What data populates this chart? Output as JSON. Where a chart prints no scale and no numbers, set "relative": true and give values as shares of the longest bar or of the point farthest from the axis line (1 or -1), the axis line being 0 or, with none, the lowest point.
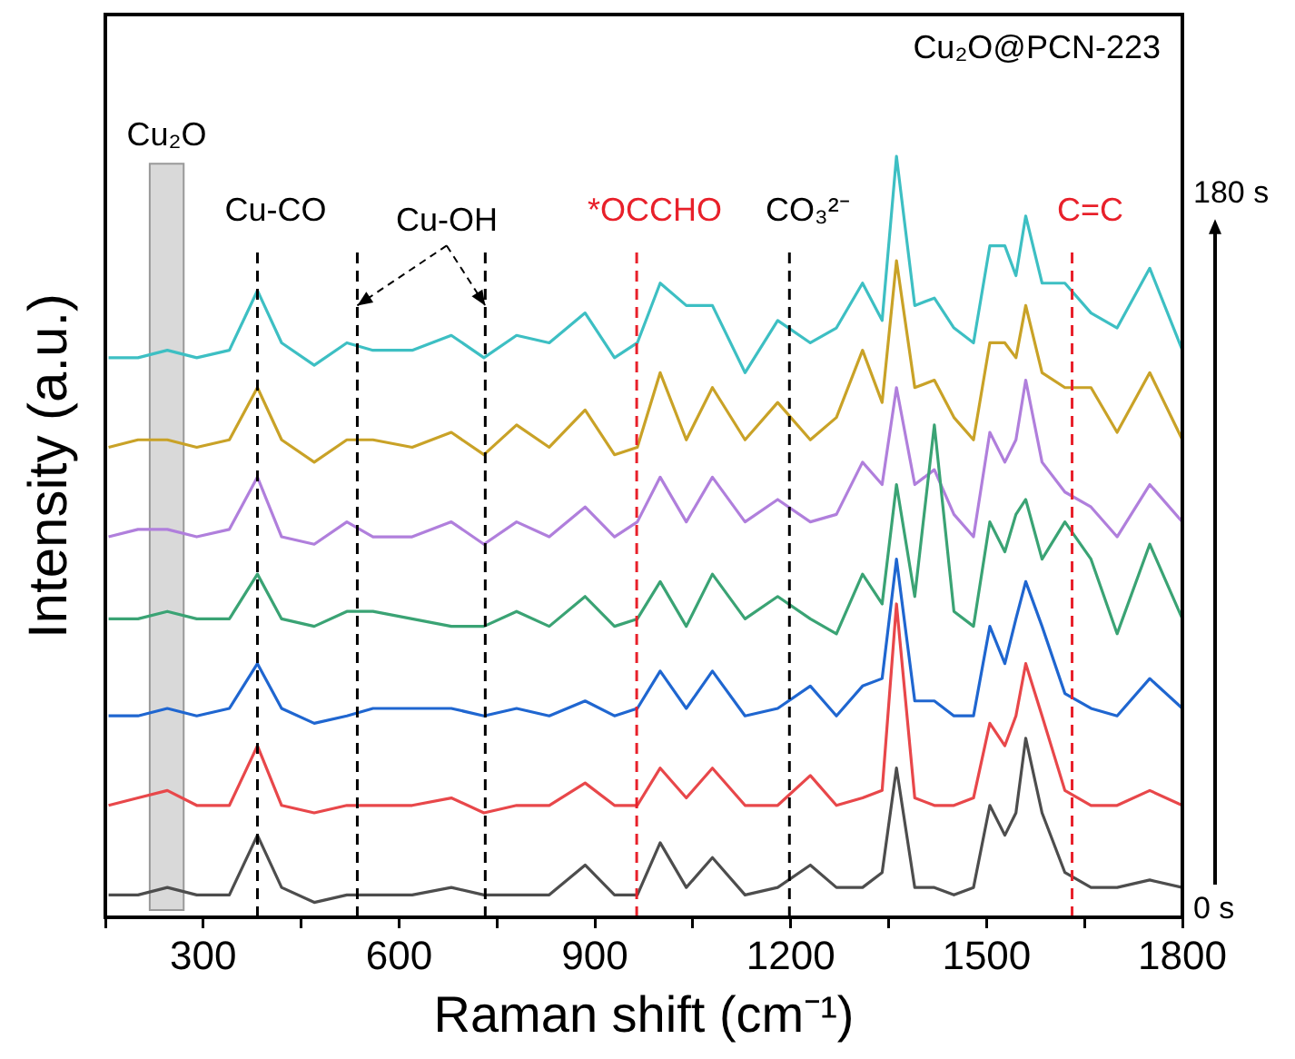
{
  "chart_data": {
    "type": "line",
    "title": "Cu₂O@PCN-223",
    "xlabel": "Raman shift (cm⁻¹)",
    "ylabel": "Intensity (a.u.)",
    "relative": true,
    "marker": "none",
    "line_style": "solid",
    "legend": false,
    "grid": false,
    "tick_labels": "x",
    "xlim": [
      150,
      1800
    ],
    "xticks": [
      {
        "value": 150,
        "label": null
      },
      300,
      {
        "value": 450,
        "label": null
      },
      600,
      {
        "value": 750,
        "label": null
      },
      900,
      {
        "value": 1050,
        "label": null
      },
      1200,
      {
        "value": 1350,
        "label": null
      },
      1500,
      {
        "value": 1650,
        "label": null
      },
      1800
    ],
    "x": [
      155,
      200,
      245,
      290,
      340,
      383,
      420,
      470,
      520,
      560,
      620,
      680,
      730,
      780,
      830,
      885,
      930,
      965,
      1000,
      1040,
      1080,
      1130,
      1180,
      1230,
      1270,
      1310,
      1340,
      1362,
      1390,
      1420,
      1450,
      1480,
      1505,
      1528,
      1545,
      1560,
      1585,
      1620,
      1660,
      1700,
      1750,
      1800
    ],
    "series": [
      {
        "color": "#4d4d4d",
        "values": [
          0.01,
          0.01,
          0.02,
          0.01,
          0.01,
          0.09,
          0.02,
          0,
          0.01,
          0.01,
          0.01,
          0.02,
          0.01,
          0.01,
          0.01,
          0.05,
          0.01,
          0.01,
          0.08,
          0.02,
          0.06,
          0.01,
          0.02,
          0.05,
          0.02,
          0.02,
          0.04,
          0.18,
          0.02,
          0.02,
          0.01,
          0.02,
          0.13,
          0.09,
          0.12,
          0.22,
          0.12,
          0.04,
          0.02,
          0.02,
          0.03,
          0.02
        ]
      },
      {
        "color": "#e8474a",
        "values": [
          0.13,
          0.14,
          0.15,
          0.13,
          0.13,
          0.21,
          0.13,
          0.12,
          0.13,
          0.13,
          0.13,
          0.14,
          0.12,
          0.13,
          0.13,
          0.16,
          0.13,
          0.13,
          0.18,
          0.14,
          0.18,
          0.13,
          0.13,
          0.17,
          0.13,
          0.14,
          0.15,
          0.4,
          0.14,
          0.13,
          0.13,
          0.14,
          0.24,
          0.21,
          0.25,
          0.32,
          0.25,
          0.15,
          0.13,
          0.13,
          0.15,
          0.13
        ]
      },
      {
        "color": "#1f66d0",
        "values": [
          0.25,
          0.25,
          0.26,
          0.25,
          0.26,
          0.32,
          0.26,
          0.24,
          0.25,
          0.26,
          0.26,
          0.26,
          0.25,
          0.26,
          0.25,
          0.27,
          0.25,
          0.26,
          0.31,
          0.26,
          0.31,
          0.25,
          0.26,
          0.29,
          0.25,
          0.29,
          0.3,
          0.46,
          0.27,
          0.27,
          0.25,
          0.25,
          0.37,
          0.32,
          0.38,
          0.43,
          0.37,
          0.28,
          0.26,
          0.25,
          0.3,
          0.26
        ]
      },
      {
        "color": "#3aa374",
        "values": [
          0.38,
          0.38,
          0.39,
          0.38,
          0.38,
          0.44,
          0.38,
          0.37,
          0.39,
          0.39,
          0.38,
          0.37,
          0.37,
          0.39,
          0.37,
          0.41,
          0.37,
          0.38,
          0.43,
          0.37,
          0.44,
          0.38,
          0.41,
          0.38,
          0.36,
          0.44,
          0.4,
          0.56,
          0.41,
          0.64,
          0.39,
          0.37,
          0.51,
          0.47,
          0.52,
          0.54,
          0.46,
          0.51,
          0.46,
          0.36,
          0.48,
          0.38
        ]
      },
      {
        "color": "#b07fdc",
        "values": [
          0.49,
          0.5,
          0.5,
          0.49,
          0.5,
          0.57,
          0.49,
          0.48,
          0.51,
          0.49,
          0.49,
          0.51,
          0.48,
          0.51,
          0.49,
          0.53,
          0.49,
          0.51,
          0.57,
          0.51,
          0.57,
          0.51,
          0.54,
          0.51,
          0.52,
          0.59,
          0.56,
          0.69,
          0.56,
          0.58,
          0.52,
          0.49,
          0.63,
          0.59,
          0.62,
          0.7,
          0.59,
          0.55,
          0.53,
          0.49,
          0.56,
          0.51
        ]
      },
      {
        "color": "#c9a227",
        "values": [
          0.61,
          0.62,
          0.62,
          0.61,
          0.62,
          0.69,
          0.62,
          0.59,
          0.62,
          0.62,
          0.61,
          0.63,
          0.6,
          0.64,
          0.61,
          0.66,
          0.6,
          0.61,
          0.71,
          0.62,
          0.69,
          0.62,
          0.67,
          0.62,
          0.65,
          0.74,
          0.67,
          0.86,
          0.69,
          0.7,
          0.65,
          0.62,
          0.75,
          0.75,
          0.73,
          0.8,
          0.71,
          0.69,
          0.69,
          0.63,
          0.71,
          0.62
        ]
      },
      {
        "color": "#3dbfc3",
        "values": [
          0.73,
          0.73,
          0.74,
          0.73,
          0.74,
          0.82,
          0.75,
          0.72,
          0.75,
          0.74,
          0.74,
          0.76,
          0.73,
          0.76,
          0.75,
          0.79,
          0.73,
          0.75,
          0.83,
          0.8,
          0.8,
          0.71,
          0.78,
          0.75,
          0.77,
          0.83,
          0.78,
          1,
          0.8,
          0.81,
          0.77,
          0.75,
          0.88,
          0.88,
          0.84,
          0.92,
          0.83,
          0.83,
          0.79,
          0.77,
          0.85,
          0.74
        ]
      }
    ],
    "bands": [
      {
        "axis": "x",
        "from": 218,
        "to": 270,
        "label": "Cu₂O",
        "color": "#d9d9d9"
      }
    ],
    "ref_lines": [
      {
        "axis": "x",
        "value": 383,
        "label": "Cu-CO",
        "color": "#000000",
        "line_style": "dashed"
      },
      {
        "axis": "x",
        "value": 536,
        "color": "#000000",
        "line_style": "dashed"
      },
      {
        "axis": "x",
        "value": 732,
        "color": "#000000",
        "line_style": "dashed"
      },
      {
        "axis": "x",
        "value": 964,
        "label": "*OCCHO",
        "color": "#e8202a",
        "line_style": "dashed"
      },
      {
        "axis": "x",
        "value": 1198,
        "label": "CO₃²⁻",
        "color": "#000000",
        "line_style": "dashed"
      },
      {
        "axis": "x",
        "value": 1631,
        "label": "C=C",
        "color": "#e8202a",
        "line_style": "dashed"
      }
    ],
    "annotations": [
      "Cu-OH",
      "180 s",
      "0 s"
    ]
  }
}
